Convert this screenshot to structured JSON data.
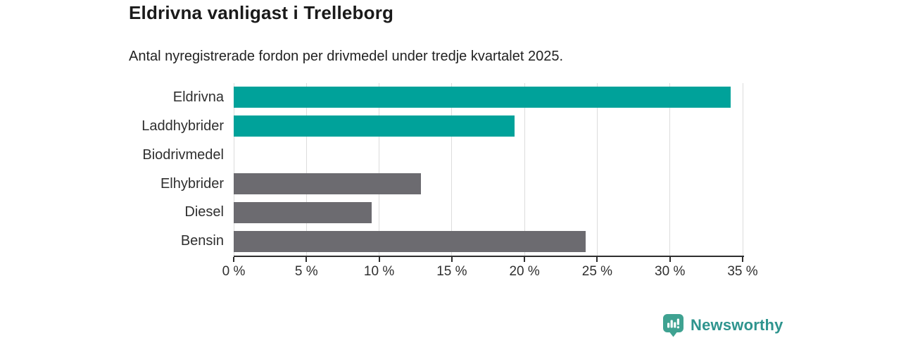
{
  "header": {
    "title": "Eldrivna vanligast i Trelleborg",
    "subtitle": "Antal nyregistrerade fordon per drivmedel under tredje kvartalet 2025."
  },
  "colors": {
    "accent_teal": "#00a29a",
    "neutral_gray": "#6c6b70",
    "gridline": "#dcdcdc",
    "axis": "#2e2e2e",
    "logo_icon": "#3fa291",
    "logo_text": "#2e948e"
  },
  "chart_data": {
    "type": "bar",
    "orientation": "horizontal",
    "title": "Eldrivna vanligast i Trelleborg",
    "subtitle": "Antal nyregistrerade fordon per drivmedel under tredje kvartalet 2025.",
    "unit": "%",
    "categories": [
      "Eldrivna",
      "Laddhybrider",
      "Biodrivmedel",
      "Elhybrider",
      "Diesel",
      "Bensin"
    ],
    "values": [
      34.2,
      19.3,
      0,
      12.9,
      9.5,
      24.2
    ],
    "bar_colors": [
      "#00a29a",
      "#00a29a",
      "#6c6b70",
      "#6c6b70",
      "#6c6b70",
      "#6c6b70"
    ],
    "xlim": [
      0,
      35
    ],
    "x_tick_step": 5,
    "x_tick_labels": [
      "0 %",
      "5 %",
      "10 %",
      "15 %",
      "20 %",
      "25 %",
      "30 %",
      "35 %"
    ],
    "grid": true,
    "legend": "none"
  },
  "footer": {
    "brand": "Newsworthy"
  }
}
